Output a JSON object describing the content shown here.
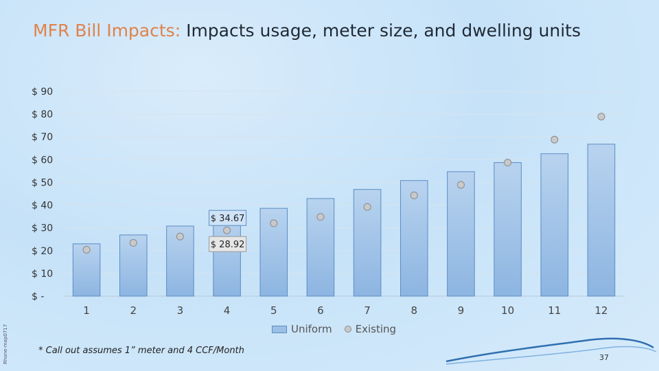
{
  "title": {
    "accent": "MFR Bill Impacts:",
    "rest": "Impacts usage, meter size, and dwelling units"
  },
  "side_note": "Rhone-map0717",
  "footnote": "* Call out assumes 1” meter and 4 CCF/Month",
  "page_number": "37",
  "colors": {
    "bar_fill": "#9cc0e5",
    "bar_stroke": "#5a8cc4",
    "dot_fill": "#c9c9c9",
    "dot_stroke": "#8a8a8a",
    "title_accent": "#e0824a"
  },
  "chart_data": {
    "type": "bar",
    "categories": [
      "1",
      "2",
      "3",
      "4",
      "5",
      "6",
      "7",
      "8",
      "9",
      "10",
      "11",
      "12"
    ],
    "series": [
      {
        "name": "Uniform",
        "type": "bar",
        "values": [
          23,
          26.9,
          30.8,
          34.67,
          38.6,
          42.9,
          46.9,
          50.8,
          54.7,
          58.7,
          62.6,
          66.8
        ]
      },
      {
        "name": "Existing",
        "type": "scatter",
        "values": [
          20.4,
          23.4,
          26.2,
          28.92,
          32,
          34.8,
          39.2,
          44.3,
          48.9,
          58.7,
          68.8,
          78.9
        ]
      }
    ],
    "ylim": [
      0,
      90
    ],
    "yticks": [
      0,
      10,
      20,
      30,
      40,
      50,
      60,
      70,
      80,
      90
    ],
    "ytick_labels": [
      "$ -",
      "$ 10",
      "$ 20",
      "$ 30",
      "$ 40",
      "$ 50",
      "$ 60",
      "$ 70",
      "$ 80",
      "$ 90"
    ],
    "grid": true,
    "legend": "bottom-center",
    "callouts": [
      {
        "category": "4",
        "series": "Uniform",
        "text": "$ 34.67"
      },
      {
        "category": "4",
        "series": "Existing",
        "text": "$ 28.92"
      }
    ]
  }
}
